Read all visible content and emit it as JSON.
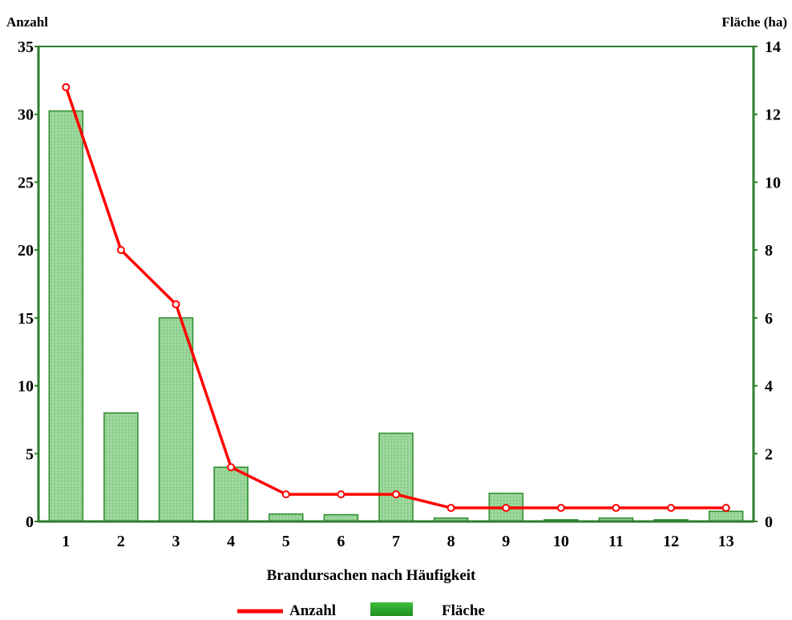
{
  "chart_data": {
    "type": "bar",
    "categories": [
      "1",
      "2",
      "3",
      "4",
      "5",
      "6",
      "7",
      "8",
      "9",
      "10",
      "11",
      "12",
      "13"
    ],
    "series": [
      {
        "name": "Fläche",
        "type": "bar",
        "axis": "right",
        "values": [
          12.1,
          3.2,
          6.0,
          1.6,
          0.22,
          0.2,
          2.6,
          0.1,
          0.83,
          0.05,
          0.1,
          0.05,
          0.3
        ],
        "color": "#2e8b2e"
      },
      {
        "name": "Anzahl",
        "type": "line",
        "axis": "left",
        "values": [
          32,
          20,
          16,
          4,
          2,
          2,
          2,
          1,
          1,
          1,
          1,
          1,
          1
        ],
        "color": "#ff0000"
      }
    ],
    "y_left": {
      "label": "Anzahl",
      "min": 0,
      "max": 35,
      "ticks": [
        "0",
        "5",
        "10",
        "15",
        "20",
        "25",
        "30",
        "35"
      ]
    },
    "y_right": {
      "label": "Fläche (ha)",
      "min": 0,
      "max": 14,
      "ticks": [
        "0",
        "2",
        "4",
        "6",
        "8",
        "10",
        "12",
        "14"
      ]
    },
    "xlabel": "Brandursachen nach Häufigkeit",
    "legend": {
      "placement": "bottom",
      "items": [
        {
          "label": "Anzahl",
          "kind": "line"
        },
        {
          "label": "Fläche",
          "kind": "bar"
        }
      ]
    },
    "grid": false
  }
}
